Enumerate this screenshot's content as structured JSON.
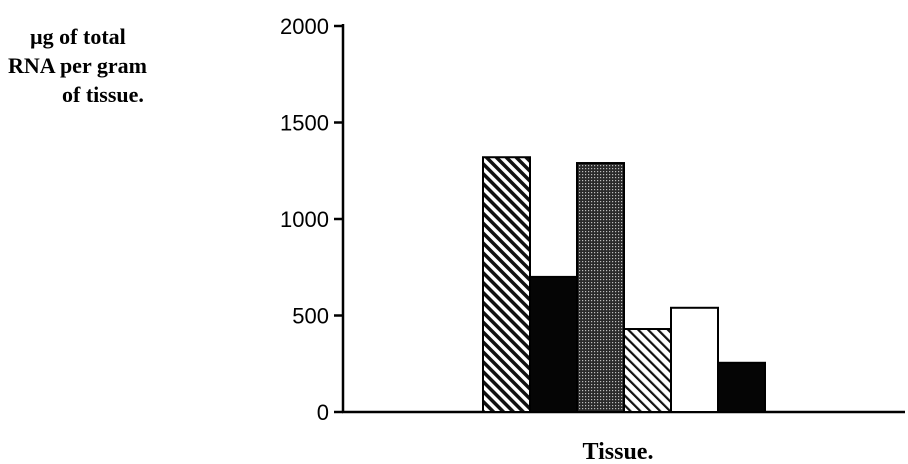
{
  "chart_data": {
    "type": "bar",
    "title": "",
    "xlabel": "Tissue.",
    "ylabel_lines": [
      "µg of total",
      "RNA per gram",
      "of tissue."
    ],
    "ylim": [
      0,
      2000
    ],
    "yticks": [
      0,
      500,
      1000,
      1500,
      2000
    ],
    "categories": [
      "",
      "",
      "",
      "",
      "",
      ""
    ],
    "values": [
      1320,
      700,
      1290,
      430,
      540,
      255
    ],
    "bar_patterns": [
      "diagonal-hatch",
      "solid-black",
      "dense-dots",
      "diagonal-hatch-light",
      "white",
      "solid-black"
    ],
    "grid": false,
    "legend": "none"
  }
}
